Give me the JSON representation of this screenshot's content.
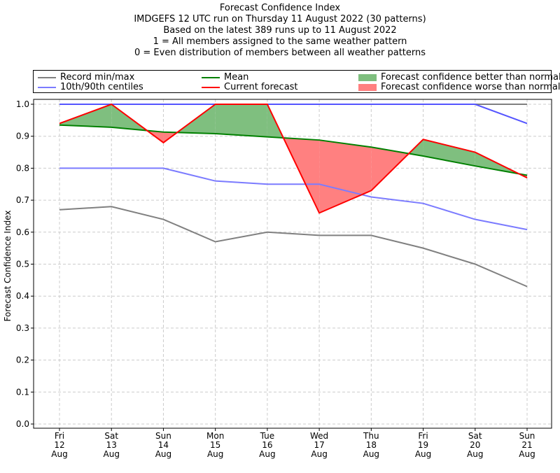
{
  "titles": [
    "Forecast Confidence Index",
    "IMDGEFS 12 UTC run on Thursday 11 August 2022 (30 patterns)",
    "Based on the latest 389 runs up to 11 August 2022",
    "1 = All members assigned to the same weather pattern",
    "0 = Even distribution of members between all weather patterns"
  ],
  "legend": [
    {
      "label": "Record min/max",
      "kind": "line",
      "color": "#808080"
    },
    {
      "label": "10th/90th centiles",
      "kind": "line",
      "color": "#7b7bff"
    },
    {
      "label": "Mean",
      "kind": "line",
      "color": "#008000"
    },
    {
      "label": "Current forecast",
      "kind": "line",
      "color": "#ff0000"
    },
    {
      "label": "Forecast confidence better than normal",
      "kind": "fill",
      "color": "#7fbf7f"
    },
    {
      "label": "Forecast confidence worse than normal",
      "kind": "fill",
      "color": "#ff8080"
    }
  ],
  "chart_data": {
    "type": "line",
    "ylabel": "Forecast Confidence Index",
    "ylim": [
      0,
      1
    ],
    "yticks": [
      "0.0",
      "0.1",
      "0.2",
      "0.3",
      "0.4",
      "0.5",
      "0.6",
      "0.7",
      "0.8",
      "0.9",
      "1.0"
    ],
    "grid": true,
    "legend_position": "top",
    "categories": [
      [
        "Fri",
        "12",
        "Aug"
      ],
      [
        "Sat",
        "13",
        "Aug"
      ],
      [
        "Sun",
        "14",
        "Aug"
      ],
      [
        "Mon",
        "15",
        "Aug"
      ],
      [
        "Tue",
        "16",
        "Aug"
      ],
      [
        "Wed",
        "17",
        "Aug"
      ],
      [
        "Thu",
        "18",
        "Aug"
      ],
      [
        "Fri",
        "19",
        "Aug"
      ],
      [
        "Sat",
        "20",
        "Aug"
      ],
      [
        "Sun",
        "21",
        "Aug"
      ]
    ],
    "series": [
      {
        "name": "Record min/max",
        "key": "record_min",
        "color": "#808080",
        "values": [
          0.67,
          0.68,
          0.64,
          0.57,
          0.6,
          0.59,
          0.59,
          0.55,
          0.5,
          0.43
        ]
      },
      {
        "name": "Record min/max",
        "key": "record_max",
        "color": "#808080",
        "values": [
          1.0,
          1.0,
          1.0,
          1.0,
          1.0,
          1.0,
          1.0,
          1.0,
          1.0,
          1.0
        ]
      },
      {
        "name": "10th/90th centiles",
        "key": "p10",
        "color": "#7b7bff",
        "values": [
          0.8,
          0.8,
          0.8,
          0.76,
          0.75,
          0.75,
          0.71,
          0.69,
          0.64,
          0.608
        ]
      },
      {
        "name": "10th/90th centiles",
        "key": "p90",
        "color": "#5555ff",
        "values": [
          1.0,
          1.0,
          1.0,
          1.0,
          1.0,
          1.0,
          1.0,
          1.0,
          1.0,
          0.94
        ]
      },
      {
        "name": "Mean",
        "key": "mean",
        "color": "#008000",
        "values": [
          0.935,
          0.928,
          0.913,
          0.908,
          0.898,
          0.888,
          0.866,
          0.838,
          0.807,
          0.778
        ]
      },
      {
        "name": "Current forecast",
        "key": "current",
        "color": "#ff0000",
        "values": [
          0.94,
          1.0,
          0.88,
          1.0,
          1.0,
          0.66,
          0.73,
          0.89,
          0.85,
          0.77
        ]
      }
    ],
    "fill_colors": {
      "better": "#7fbf7f",
      "worse": "#ff8080"
    }
  }
}
